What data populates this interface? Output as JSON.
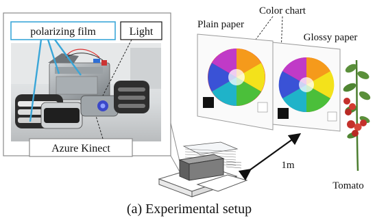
{
  "labels": {
    "polarizing_film": "polarizing film",
    "light": "Light",
    "azure_kinect": "Azure Kinect",
    "plain_paper": "Plain paper",
    "color_chart": "Color chart",
    "glossy_paper": "Glossy paper",
    "distance": "1m",
    "tomato": "Tomato"
  },
  "caption": "(a) Experimental setup",
  "colors": {
    "callout_line": "#3aa6d8",
    "paper_border": "#9a9a9a",
    "text": "#111111",
    "tomato_red": "#c4302b",
    "leaf_green": "#5a8f3a",
    "kinect_body": "#7d7d7d"
  },
  "icons": {
    "photo": "robot-photo",
    "color_wheel": "color-wheel-icon",
    "tomato_plant": "tomato-plant-icon",
    "camera": "camera-device-icon"
  }
}
